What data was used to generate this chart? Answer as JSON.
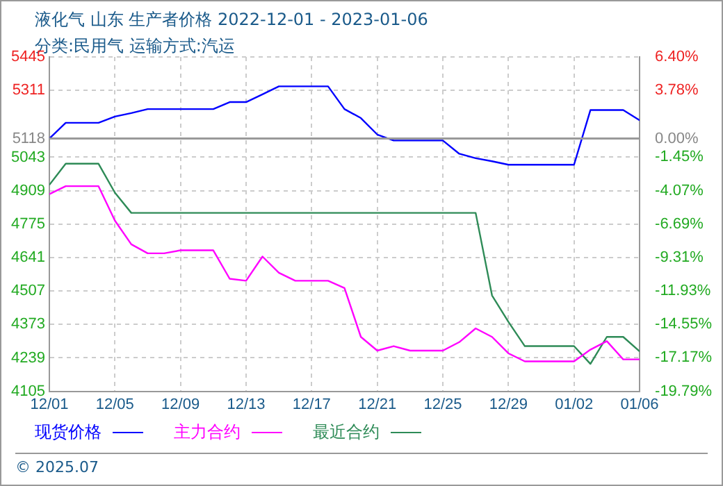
{
  "chart_data": {
    "type": "line",
    "title": "液化气 山东 生产者价格 2022-12-01 - 2023-01-06",
    "subtitle": "分类:民用气 运输方式:汽运",
    "x": [
      "2022-12-01",
      "2022-12-02",
      "2022-12-03",
      "2022-12-04",
      "2022-12-05",
      "2022-12-06",
      "2022-12-07",
      "2022-12-08",
      "2022-12-09",
      "2022-12-10",
      "2022-12-11",
      "2022-12-12",
      "2022-12-13",
      "2022-12-14",
      "2022-12-15",
      "2022-12-16",
      "2022-12-17",
      "2022-12-18",
      "2022-12-19",
      "2022-12-20",
      "2022-12-21",
      "2022-12-22",
      "2022-12-23",
      "2022-12-24",
      "2022-12-25",
      "2022-12-26",
      "2022-12-27",
      "2022-12-28",
      "2022-12-29",
      "2022-12-30",
      "2022-12-31",
      "2023-01-01",
      "2023-01-02",
      "2023-01-03",
      "2023-01-04",
      "2023-01-05",
      "2023-01-06"
    ],
    "series": [
      {
        "name": "现货价格",
        "color": "#0000ff",
        "values": [
          5118,
          5181,
          5181,
          5181,
          5206,
          5220,
          5236,
          5236,
          5236,
          5236,
          5236,
          5264,
          5264,
          5295,
          5327,
          5327,
          5327,
          5327,
          5236,
          5200,
          5134,
          5110,
          5110,
          5110,
          5110,
          5057,
          5039,
          5027,
          5013,
          5013,
          5013,
          5013,
          5013,
          5232,
          5232,
          5232,
          5191
        ]
      },
      {
        "name": "主力合约",
        "color": "#ff00ff",
        "values": [
          4895,
          4927,
          4927,
          4927,
          4789,
          4694,
          4658,
          4658,
          4670,
          4670,
          4670,
          4556,
          4548,
          4645,
          4580,
          4548,
          4548,
          4548,
          4519,
          4323,
          4268,
          4286,
          4268,
          4268,
          4268,
          4302,
          4357,
          4323,
          4257,
          4225,
          4225,
          4225,
          4225,
          4272,
          4306,
          4233,
          4233
        ]
      },
      {
        "name": "最近合约",
        "color": "#2e8b57",
        "values": [
          4932,
          5017,
          5017,
          5017,
          4901,
          4820,
          4820,
          4820,
          4820,
          4820,
          4820,
          4820,
          4820,
          4820,
          4820,
          4820,
          4820,
          4820,
          4820,
          4820,
          4820,
          4820,
          4820,
          4820,
          4820,
          4820,
          4820,
          4489,
          4383,
          4286,
          4286,
          4286,
          4286,
          4215,
          4323,
          4323,
          4265
        ]
      }
    ],
    "xlim": [
      "2022-12-01",
      "2023-01-06"
    ],
    "xticks": [
      {
        "value": "2022-12-01",
        "label": "12/01"
      },
      {
        "value": "2022-12-05",
        "label": "12/05"
      },
      {
        "value": "2022-12-09",
        "label": "12/09"
      },
      {
        "value": "2022-12-13",
        "label": "12/13"
      },
      {
        "value": "2022-12-17",
        "label": "12/17"
      },
      {
        "value": "2022-12-21",
        "label": "12/21"
      },
      {
        "value": "2022-12-25",
        "label": "12/25"
      },
      {
        "value": "2022-12-29",
        "label": "12/29"
      },
      {
        "value": "2023-01-02",
        "label": "01/02"
      },
      {
        "value": "2023-01-06",
        "label": "01/06"
      }
    ],
    "ylim": [
      4105,
      5445
    ],
    "yticks": [
      4105,
      4239,
      4373,
      4507,
      4641,
      4775,
      4909,
      5043,
      5118,
      5311,
      5445
    ],
    "y2lim": [
      -19.79,
      6.4
    ],
    "y2ticks": [
      {
        "value": -19.79,
        "label": "-19.79%"
      },
      {
        "value": -17.17,
        "label": "-17.17%"
      },
      {
        "value": -14.55,
        "label": "-14.55%"
      },
      {
        "value": -11.93,
        "label": "-11.93%"
      },
      {
        "value": -9.31,
        "label": "-9.31%"
      },
      {
        "value": -6.69,
        "label": "-6.69%"
      },
      {
        "value": -4.07,
        "label": "-4.07%"
      },
      {
        "value": -1.45,
        "label": "-1.45%"
      },
      {
        "value": 0,
        "label": "0.00%"
      },
      {
        "value": 3.78,
        "label": "3.78%"
      },
      {
        "value": 6.4,
        "label": "6.40%"
      }
    ],
    "ref_lines": [
      {
        "axis": "y",
        "value": 5118,
        "color": "#999999"
      }
    ],
    "grid": true,
    "legend": "bottom",
    "marker": "none",
    "line_style": "solid",
    "annotations": [
      "© 2025.07"
    ]
  }
}
